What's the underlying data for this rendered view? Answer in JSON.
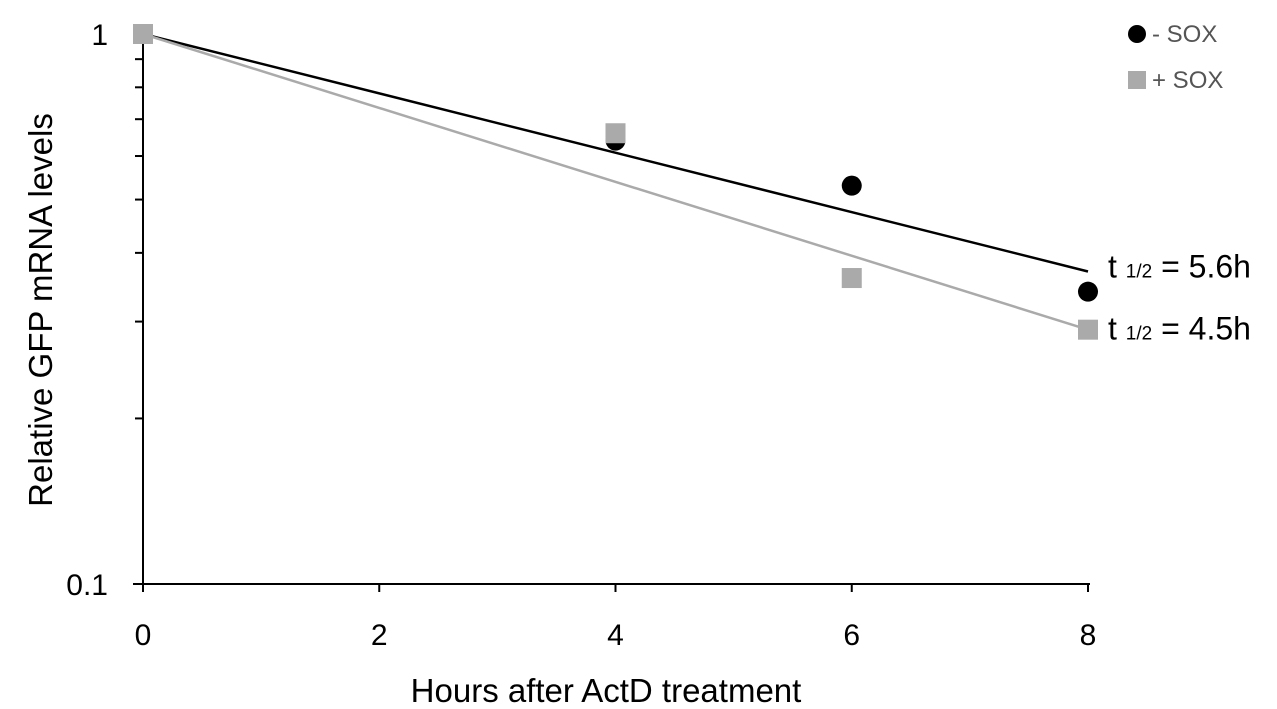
{
  "chart_data": {
    "type": "scatter",
    "title": "",
    "xlabel": "Hours after ActD treatment",
    "ylabel": "Relative GFP mRNA levels",
    "xlim": [
      0,
      8
    ],
    "ylim": [
      0.1,
      1
    ],
    "yscale": "log",
    "xticks": [
      "0",
      "2",
      "4",
      "6",
      "8"
    ],
    "yticks": [
      "0.1",
      "1"
    ],
    "grid": false,
    "legend_position": "top-right",
    "series": [
      {
        "name": "- SOX",
        "marker": "circle",
        "color": "#000000",
        "points": [
          {
            "x": 0,
            "y": 1.0
          },
          {
            "x": 4,
            "y": 0.64
          },
          {
            "x": 6,
            "y": 0.53
          },
          {
            "x": 8,
            "y": 0.34
          }
        ],
        "trendline": {
          "type": "exponential",
          "x": [
            0,
            8
          ],
          "y": [
            1.0,
            0.37
          ]
        },
        "annotation": {
          "prefix": "t ",
          "sub": "1/2",
          "suffix": " = 5.6h"
        }
      },
      {
        "name": "+ SOX",
        "marker": "square",
        "color": "#aaaaaa",
        "points": [
          {
            "x": 0,
            "y": 1.0
          },
          {
            "x": 4,
            "y": 0.66
          },
          {
            "x": 6,
            "y": 0.36
          },
          {
            "x": 8,
            "y": 0.29
          }
        ],
        "trendline": {
          "type": "exponential",
          "x": [
            0,
            8
          ],
          "y": [
            1.0,
            0.29
          ]
        },
        "annotation": {
          "prefix": "t ",
          "sub": "1/2",
          "suffix": " = 4.5h"
        }
      }
    ]
  }
}
